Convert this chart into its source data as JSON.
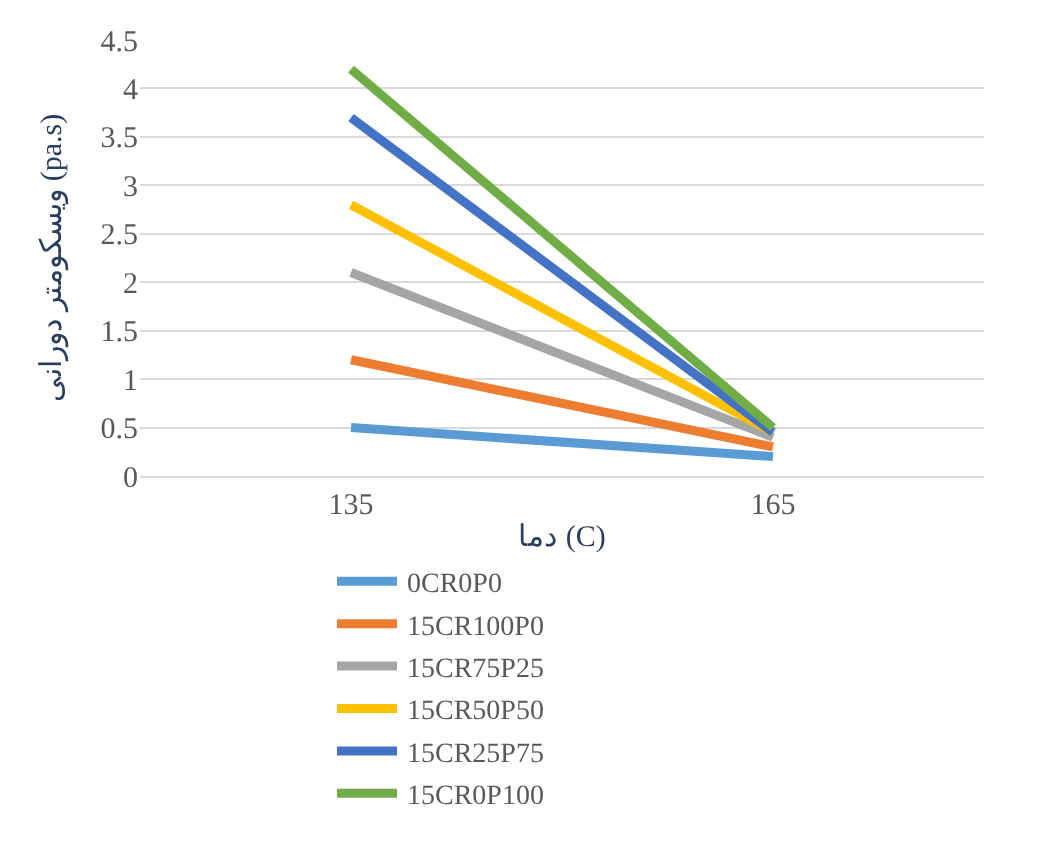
{
  "chart_data": {
    "type": "line",
    "categories": [
      "135",
      "165"
    ],
    "xlabel": "دما (C)",
    "ylabel": "ویسکومتر دورانی (pa.s)",
    "ylim": [
      0,
      4.5
    ],
    "yticks": [
      0,
      0.5,
      1,
      1.5,
      2,
      2.5,
      3,
      3.5,
      4,
      4.5
    ],
    "grid": "y",
    "legend": "bottom",
    "marker": "none",
    "line_style": "solid",
    "series": [
      {
        "name": "0CR0P0",
        "color": "#5b9bd5",
        "values": [
          0.5,
          0.2
        ]
      },
      {
        "name": "15CR100P0",
        "color": "#ed7d31",
        "values": [
          1.2,
          0.3
        ]
      },
      {
        "name": "15CR75P25",
        "color": "#a5a5a5",
        "values": [
          2.1,
          0.4
        ]
      },
      {
        "name": "15CR50P50",
        "color": "#ffc000",
        "values": [
          2.8,
          0.45
        ]
      },
      {
        "name": "15CR25P75",
        "color": "#4472c4",
        "values": [
          3.7,
          0.45
        ]
      },
      {
        "name": "15CR0P100",
        "color": "#70ad47",
        "values": [
          4.2,
          0.5
        ]
      }
    ]
  }
}
